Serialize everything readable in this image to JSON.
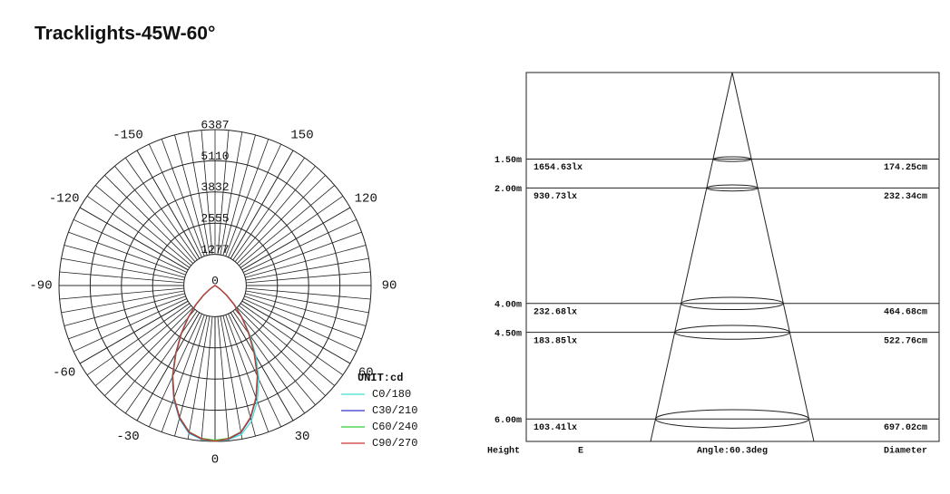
{
  "chart_data": [
    {
      "type": "polar",
      "title": "Tracklights-45W-60°",
      "unit": "UNIT:cd",
      "rlim": [
        0,
        6387
      ],
      "rticks": [
        0,
        1277,
        2555,
        3832,
        5110,
        6387
      ],
      "angle_ticks": [
        -150,
        150,
        -120,
        120,
        -90,
        90,
        -60,
        60,
        -30,
        30,
        0
      ],
      "x": [
        -60,
        -55,
        -50,
        -45,
        -40,
        -35,
        -30,
        -25,
        -20,
        -15,
        -10,
        -5,
        0,
        5,
        10,
        15,
        20,
        25,
        30,
        35,
        40,
        45,
        50,
        55,
        60
      ],
      "series": [
        {
          "name": "C0/180",
          "color": "#40e0d0",
          "values": [
            60,
            280,
            650,
            1150,
            1750,
            2450,
            3250,
            4150,
            4950,
            5650,
            6150,
            6330,
            6387,
            6330,
            6200,
            5750,
            5050,
            4250,
            3350,
            2500,
            1750,
            1150,
            640,
            270,
            60
          ]
        },
        {
          "name": "C30/210",
          "color": "#3333cc",
          "values": [
            50,
            260,
            620,
            1120,
            1720,
            2420,
            3220,
            4120,
            4920,
            5620,
            6120,
            6310,
            6360,
            6310,
            6120,
            5620,
            4920,
            4120,
            3220,
            2420,
            1720,
            1120,
            620,
            260,
            50
          ]
        },
        {
          "name": "C60/240",
          "color": "#33cc33",
          "values": [
            40,
            240,
            590,
            1090,
            1690,
            2390,
            3190,
            4090,
            4890,
            5590,
            6090,
            6290,
            6340,
            6290,
            6090,
            5590,
            4890,
            4090,
            3190,
            2390,
            1690,
            1090,
            590,
            240,
            40
          ]
        },
        {
          "name": "C90/270",
          "color": "#cc3333",
          "values": [
            50,
            250,
            600,
            1100,
            1700,
            2400,
            3200,
            4100,
            4900,
            5600,
            6100,
            6300,
            6380,
            6300,
            6100,
            5600,
            4900,
            4100,
            3200,
            2400,
            1700,
            1100,
            600,
            250,
            50
          ]
        }
      ]
    },
    {
      "type": "cone",
      "heights": [
        1.5,
        2,
        4,
        4.5,
        6
      ],
      "height_labels": [
        "1.50m",
        "2.00m",
        "4.00m",
        "4.50m",
        "6.00m"
      ],
      "illuminance": [
        1654.63,
        930.73,
        232.68,
        183.85,
        103.41
      ],
      "illuminance_labels": [
        "1654.63lx",
        "930.73lx",
        "232.68lx",
        "183.85lx",
        "103.41lx"
      ],
      "diameters": [
        174.25,
        232.34,
        464.68,
        522.76,
        697.02
      ],
      "diameter_labels": [
        "174.25cm",
        "232.34cm",
        "464.68cm",
        "522.76cm",
        "697.02cm"
      ],
      "headers": {
        "height": "Height",
        "illuminance": "E",
        "diameter": "Diameter"
      },
      "angle_label": "Angle:60.3deg"
    }
  ]
}
